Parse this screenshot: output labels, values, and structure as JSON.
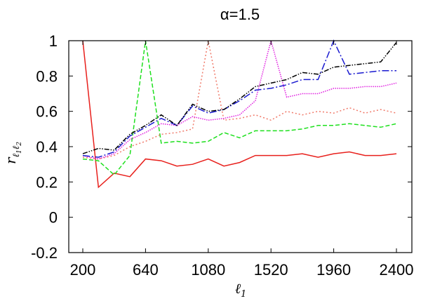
{
  "chart_data": {
    "type": "line",
    "title": "α=1.5",
    "xlabel": {
      "base": "ℓ",
      "sub": "1"
    },
    "ylabel": {
      "base": "r",
      "sub1": "ℓ",
      "sub1sub": "1",
      "sub2": "ℓ",
      "sub2sub": "2"
    },
    "xlim": [
      200,
      2400
    ],
    "ylim": [
      -0.2,
      1.0
    ],
    "x_ticks": [
      200,
      640,
      1080,
      1520,
      1960,
      2400
    ],
    "x_tick_labels": [
      "200",
      "640",
      "1080",
      "1520",
      "1960",
      "2400"
    ],
    "y_ticks": [
      -0.2,
      0,
      0.2,
      0.4,
      0.6,
      0.8,
      1.0
    ],
    "y_tick_labels": [
      "-0.2",
      "0",
      "0.2",
      "0.4",
      "0.6",
      "0.8",
      "1"
    ],
    "grid": false,
    "legend": "none",
    "series": [
      {
        "color": "#e8201c",
        "dash": "solid",
        "x": [
          200,
          310,
          420,
          530,
          640,
          750,
          860,
          970,
          1080,
          1190,
          1300,
          1410,
          1520,
          1630,
          1740,
          1850,
          1960,
          2070,
          2180,
          2290,
          2400
        ],
        "y": [
          1.0,
          0.17,
          0.25,
          0.23,
          0.33,
          0.32,
          0.29,
          0.3,
          0.33,
          0.29,
          0.31,
          0.35,
          0.35,
          0.35,
          0.36,
          0.34,
          0.36,
          0.37,
          0.35,
          0.35,
          0.36
        ]
      },
      {
        "color": "#1ee01e",
        "dash": "dashed",
        "x": [
          200,
          310,
          420,
          530,
          640,
          750,
          860,
          970,
          1080,
          1190,
          1300,
          1410,
          1520,
          1630,
          1740,
          1850,
          1960,
          2070,
          2180,
          2290,
          2400
        ],
        "y": [
          0.33,
          0.32,
          0.24,
          0.35,
          1.0,
          0.42,
          0.43,
          0.42,
          0.43,
          0.48,
          0.45,
          0.49,
          0.49,
          0.49,
          0.5,
          0.52,
          0.52,
          0.53,
          0.52,
          0.51,
          0.53
        ]
      },
      {
        "color": "#f07a6a",
        "dash": "dotted",
        "x": [
          200,
          310,
          420,
          530,
          640,
          750,
          860,
          970,
          1080,
          1190,
          1300,
          1410,
          1520,
          1630,
          1740,
          1850,
          1960,
          2070,
          2180,
          2290,
          2400
        ],
        "y": [
          0.34,
          0.33,
          0.35,
          0.4,
          0.43,
          0.47,
          0.48,
          0.5,
          1.0,
          0.55,
          0.56,
          0.58,
          0.55,
          0.6,
          0.58,
          0.6,
          0.59,
          0.62,
          0.59,
          0.61,
          0.59
        ]
      },
      {
        "color": "#e020e0",
        "dash": "dotted-dense",
        "x": [
          200,
          310,
          420,
          530,
          640,
          750,
          860,
          970,
          1080,
          1190,
          1300,
          1410,
          1520,
          1630,
          1740,
          1850,
          1960,
          2070,
          2180,
          2290,
          2400
        ],
        "y": [
          0.35,
          0.33,
          0.36,
          0.44,
          0.48,
          0.53,
          0.52,
          0.57,
          0.55,
          0.56,
          0.58,
          0.66,
          1.0,
          0.68,
          0.7,
          0.7,
          0.73,
          0.73,
          0.74,
          0.74,
          0.76
        ]
      },
      {
        "color": "#1a1ad0",
        "dash": "dashdot",
        "x": [
          200,
          310,
          420,
          530,
          640,
          750,
          860,
          970,
          1080,
          1190,
          1300,
          1410,
          1520,
          1630,
          1740,
          1850,
          1960,
          2070,
          2180,
          2290,
          2400
        ],
        "y": [
          0.35,
          0.34,
          0.37,
          0.46,
          0.51,
          0.56,
          0.52,
          0.63,
          0.59,
          0.61,
          0.66,
          0.72,
          0.73,
          0.75,
          0.78,
          0.78,
          1.0,
          0.81,
          0.82,
          0.83,
          0.83
        ]
      },
      {
        "color": "#000000",
        "dash": "dashdotdot",
        "x": [
          200,
          310,
          420,
          530,
          640,
          750,
          860,
          970,
          1080,
          1190,
          1300,
          1410,
          1520,
          1630,
          1740,
          1850,
          1960,
          2070,
          2180,
          2290,
          2400
        ],
        "y": [
          0.36,
          0.39,
          0.38,
          0.47,
          0.52,
          0.58,
          0.52,
          0.64,
          0.6,
          0.61,
          0.67,
          0.74,
          0.76,
          0.78,
          0.82,
          0.81,
          0.85,
          0.86,
          0.87,
          0.88,
          0.99
        ]
      }
    ]
  }
}
